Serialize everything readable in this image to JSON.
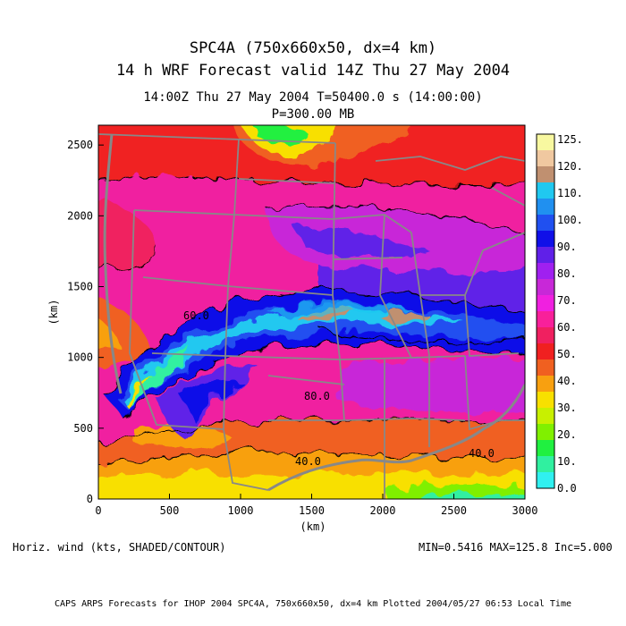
{
  "header": {
    "title_line1": "SPC4A (750x660x50, dx=4 km)",
    "title_line2": "14 h WRF Forecast valid 14Z Thu 27 May 2004",
    "time_line": "14:00Z Thu 27 May 2004      T=50400.0 s (14:00:00)",
    "level_line": "P=300.00 MB"
  },
  "axes": {
    "x_label": "(km)",
    "y_label": "(km)",
    "x_range": [
      0,
      3000
    ],
    "y_range": [
      0,
      2640
    ],
    "x_ticks": [
      "0",
      "500",
      "1000",
      "1500",
      "2000",
      "2500",
      "3000"
    ],
    "y_ticks": [
      "0",
      "500",
      "1000",
      "1500",
      "2000",
      "2500"
    ]
  },
  "colorbar": {
    "labels": [
      "125.",
      "120.",
      "110.",
      "100.",
      "90.",
      "80.",
      "70.",
      "60.",
      "50.",
      "40.",
      "30.",
      "20.",
      "10.",
      "0.0"
    ],
    "colors": [
      "#f8f8a0",
      "#f0c8a0",
      "#c09070",
      "#20c8f0",
      "#2090f0",
      "#2050f0",
      "#1010e8",
      "#6020e8",
      "#a020f0",
      "#c828d8",
      "#f020e0",
      "#f8209a",
      "#f02060",
      "#f02020",
      "#f06020",
      "#f8a010",
      "#f8e000",
      "#c8f000",
      "#80f000",
      "#20f040",
      "#30f0a0",
      "#30f0f0"
    ]
  },
  "map_labels": {
    "contour_40_left": "40.0",
    "contour_40_right": "40.0",
    "contour_60": "60.0",
    "contour_80": "80.0"
  },
  "footer": {
    "variable": "Horiz. wind (kts, SHADED/CONTOUR)",
    "stats": "MIN=0.5416 MAX=125.8 Inc=5.000",
    "credit": "CAPS ARPS Forecasts for IHOP 2004  SPC4A, 750x660x50, dx=4 km  Plotted 2004/05/27 06:53 Local Time"
  }
}
